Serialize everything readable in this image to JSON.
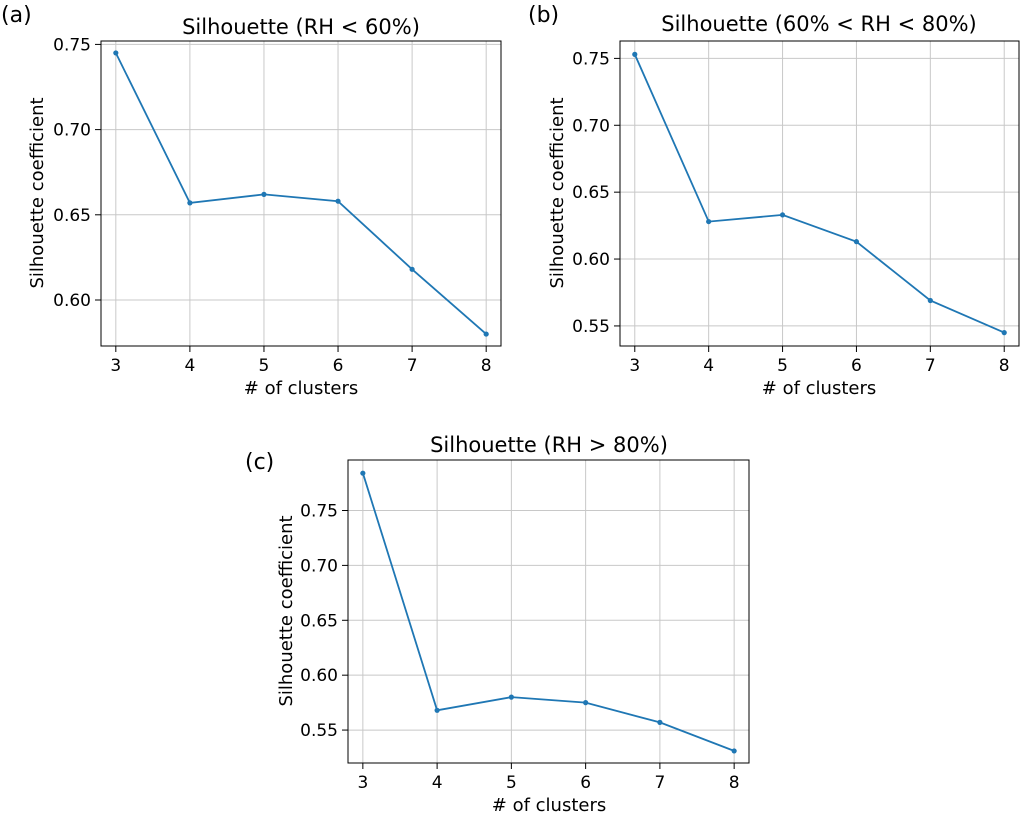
{
  "chart_data": [
    {
      "panel_label": "(a)",
      "type": "line",
      "title": "Silhouette (RH < 60%)",
      "xlabel": "# of clusters",
      "ylabel": "Silhouette coefficient",
      "x": [
        3,
        4,
        5,
        6,
        7,
        8
      ],
      "y": [
        0.745,
        0.657,
        0.662,
        0.658,
        0.618,
        0.58
      ],
      "xlim": [
        2.8,
        8.2
      ],
      "ylim": [
        0.573,
        0.752
      ],
      "xticks": [
        "3",
        "4",
        "5",
        "6",
        "7",
        "8"
      ],
      "yticks": [
        "0.60",
        "0.65",
        "0.70",
        "0.75"
      ],
      "grid": true,
      "color": "#1f77b4"
    },
    {
      "panel_label": "(b)",
      "type": "line",
      "title": "Silhouette (60% < RH < 80%)",
      "xlabel": "# of clusters",
      "ylabel": "Silhouette coefficient",
      "x": [
        3,
        4,
        5,
        6,
        7,
        8
      ],
      "y": [
        0.753,
        0.628,
        0.633,
        0.613,
        0.569,
        0.545
      ],
      "xlim": [
        2.8,
        8.2
      ],
      "ylim": [
        0.535,
        0.763
      ],
      "xticks": [
        "3",
        "4",
        "5",
        "6",
        "7",
        "8"
      ],
      "yticks": [
        "0.55",
        "0.60",
        "0.65",
        "0.70",
        "0.75"
      ],
      "grid": true,
      "color": "#1f77b4"
    },
    {
      "panel_label": "(c)",
      "type": "line",
      "title": "Silhouette (RH > 80%)",
      "xlabel": "# of clusters",
      "ylabel": "Silhouette coefficient",
      "x": [
        3,
        4,
        5,
        6,
        7,
        8
      ],
      "y": [
        0.784,
        0.568,
        0.58,
        0.575,
        0.557,
        0.531
      ],
      "xlim": [
        2.8,
        8.2
      ],
      "ylim": [
        0.52,
        0.796
      ],
      "xticks": [
        "3",
        "4",
        "5",
        "6",
        "7",
        "8"
      ],
      "yticks": [
        "0.55",
        "0.60",
        "0.65",
        "0.70",
        "0.75"
      ],
      "grid": true,
      "color": "#1f77b4"
    }
  ]
}
